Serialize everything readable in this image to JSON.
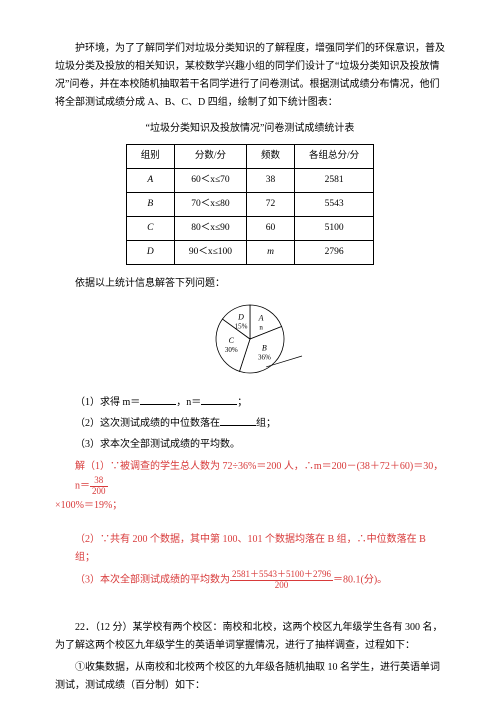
{
  "intro": {
    "p1": "护环境，为了了解同学们对垃圾分类知识的了解程度，增强同学们的环保意识，普及垃圾分类及投放的相关知识，某校数学兴趣小组的同学们设计了“垃圾分类知识及投放情况”问卷，并在本校随机抽取若干名同学进行了问卷测试。根据测试成绩分布情况，他们将全部测试成绩分成 A、B、C、D 四组，绘制了如下统计图表："
  },
  "table": {
    "title": "“垃圾分类知识及投放情况”问卷测试成绩统计表",
    "headers": [
      "组别",
      "分数/分",
      "频数",
      "各组总分/分"
    ],
    "rows": [
      [
        "A",
        "60＜x≤70",
        "38",
        "2581"
      ],
      [
        "B",
        "70＜x≤80",
        "72",
        "5543"
      ],
      [
        "C",
        "80＜x≤90",
        "60",
        "5100"
      ],
      [
        "D",
        "90＜x≤100",
        "m",
        "2796"
      ]
    ]
  },
  "note": "依据以上统计信息解答下列问题：",
  "pie": {
    "slices": [
      {
        "label": "A",
        "sub": "n",
        "color": "#ffffff",
        "start": -90,
        "end": -21.6
      },
      {
        "label": "B",
        "sub": "36%",
        "color": "#ffffff",
        "start": -21.6,
        "end": 108
      },
      {
        "label": "C",
        "sub": "30%",
        "color": "#ffffff",
        "start": 108,
        "end": 216
      },
      {
        "label": "D",
        "sub": "15%",
        "color": "#ffffff",
        "start": 216,
        "end": 270
      }
    ],
    "stroke": "#000000",
    "radius": 34
  },
  "questions": {
    "q1a": "（1）求得 m＝",
    "q1b": "，n＝",
    "q1c": "；",
    "q2a": "（2）这次测试成绩的中位数落在",
    "q2b": "组；",
    "q3": "（3）求本次全部测试成绩的平均数。"
  },
  "answers": {
    "a1_pre": "解（1）∵被调查的学生总人数为 72÷36%＝200 人，∴m＝200－(38＋72＋60)＝30，n＝",
    "a1_frac_num": "38",
    "a1_frac_den": "200",
    "a1_post": "×100%＝19%；",
    "a2": "（2）∵共有 200 个数据，其中第 100、101 个数据均落在 B 组，∴中位数落在 B 组；",
    "a3_pre": "（3）本次全部测试成绩的平均数为",
    "a3_frac_num": "2581＋5543＋5100＋2796",
    "a3_frac_den": "200",
    "a3_post": "＝80.1(分)。"
  },
  "sec22": {
    "p1": "22．（12 分）某学校有两个校区：南校和北校，这两个校区九年级学生各有 300 名，为了解这两个校区九年级学生的英语单词掌握情况，进行了抽样调查，过程如下：",
    "p2": "①收集数据，从南校和北校两个校区的九年级各随机抽取 10 名学生，进行英语单词测试，测试成绩（百分制）如下："
  }
}
